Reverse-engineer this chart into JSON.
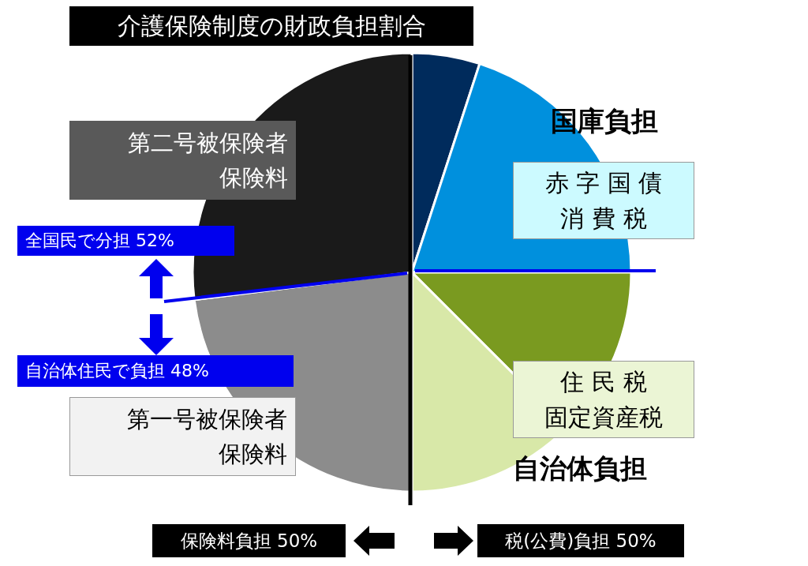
{
  "chart_data": {
    "type": "pie",
    "title": "介護保険制度の財政負担割合",
    "categories": [
      null,
      null,
      null,
      null,
      null,
      null
    ],
    "values": [
      5,
      20,
      12.5,
      12.5,
      23,
      27
    ],
    "colors": [
      "#002b5c",
      "#0090dd",
      "#7a9a20",
      "#d8e8a8",
      "#8c8c8c",
      "#1a1a1a"
    ],
    "annotations": [
      "第二号被保険者",
      "保険料",
      "国庫負担",
      "赤 字 国 債",
      "消 費 税",
      "全国民で分担  52%",
      "自治体住民で負担  48%",
      "第一号被保険者",
      "保険料",
      "住 民 税",
      "固定資産税",
      "自治体負担",
      "保険料負担  50%",
      "税(公費)負担  50%"
    ]
  }
}
